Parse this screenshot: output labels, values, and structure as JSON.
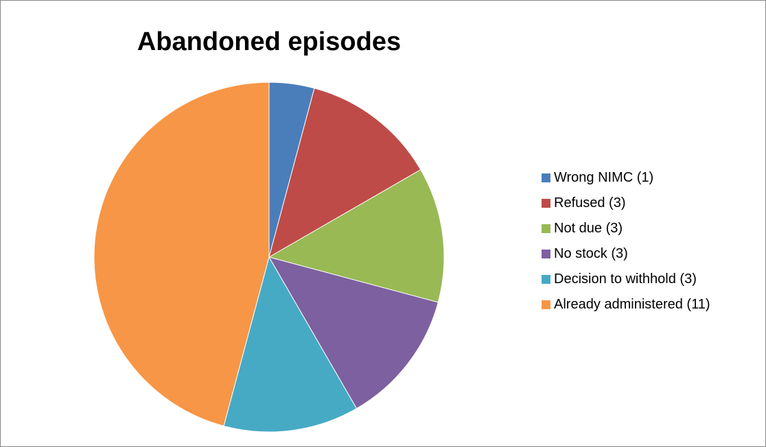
{
  "chart_data": {
    "type": "pie",
    "title": "Abandoned episodes",
    "categories": [
      "Wrong NIMC (1)",
      "Refused (3)",
      "Not due (3)",
      "No stock (3)",
      "Decision to withhold (3)",
      "Already administered (11)"
    ],
    "values": [
      1,
      3,
      3,
      3,
      3,
      11
    ],
    "colors": [
      "#4a7ebb",
      "#be4b48",
      "#98b954",
      "#7d60a0",
      "#46aac5",
      "#f79646"
    ],
    "legend_position": "right",
    "start_angle": "12 o'clock",
    "direction": "clockwise"
  }
}
